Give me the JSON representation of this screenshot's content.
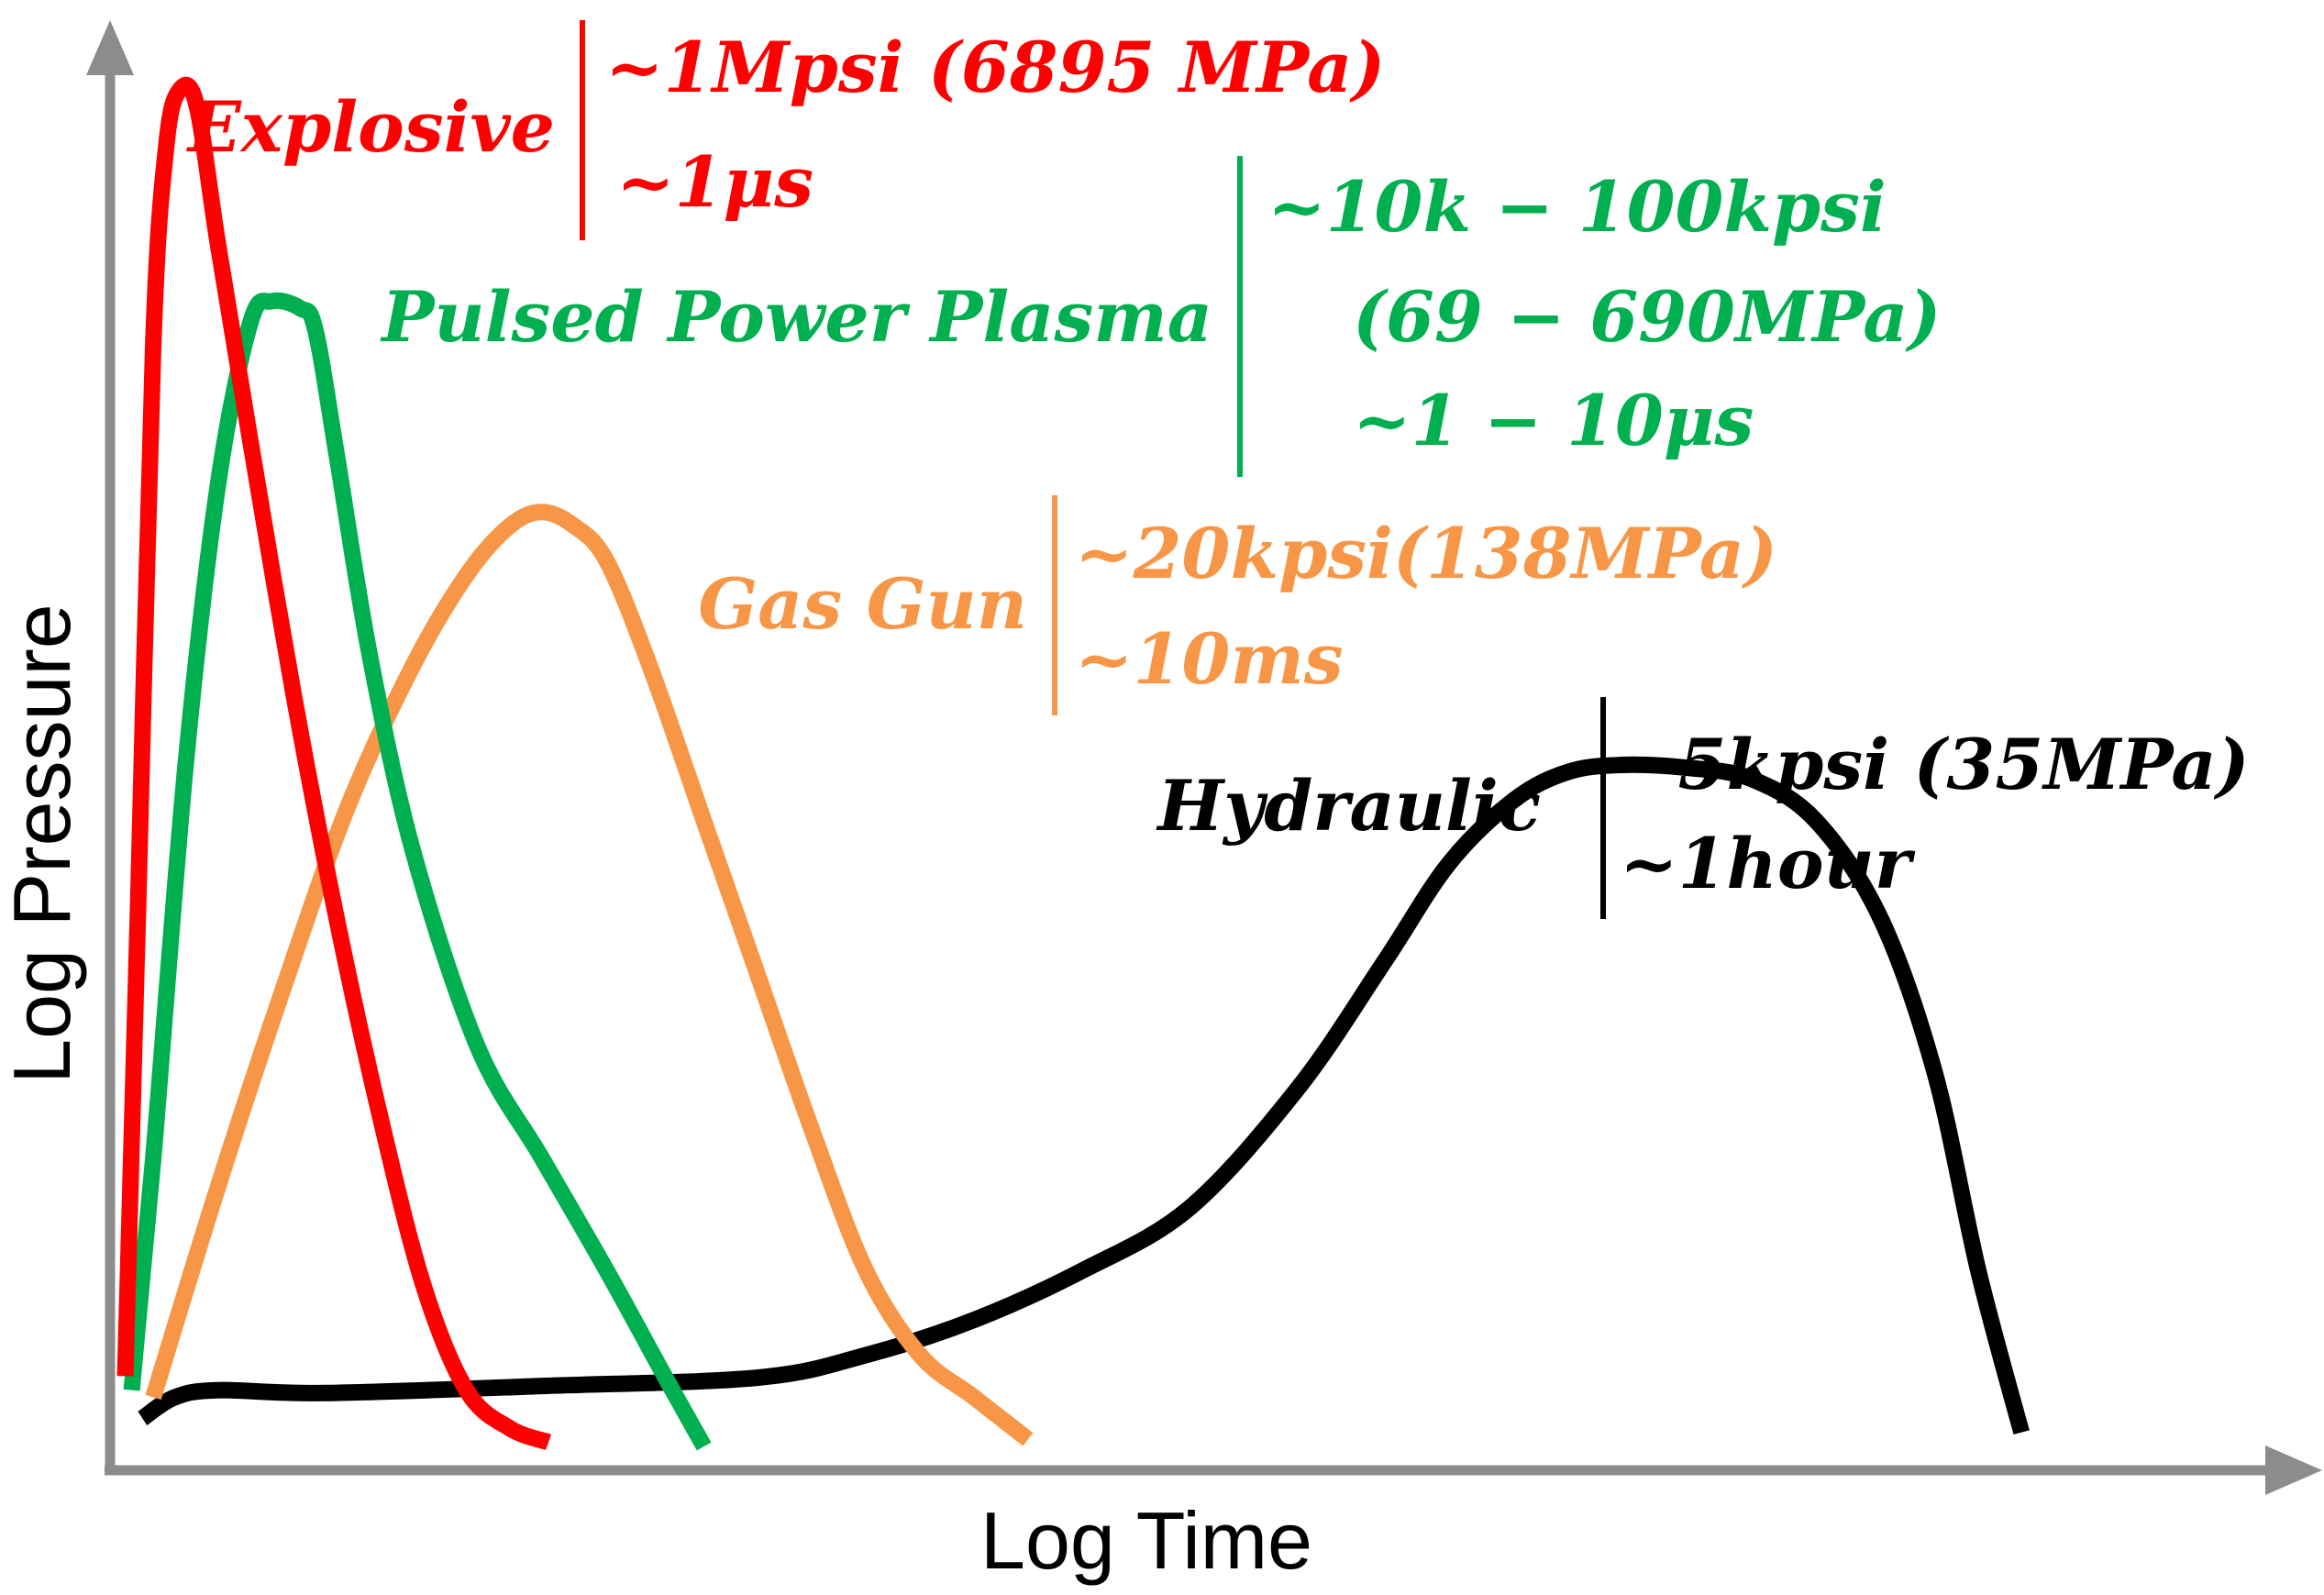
{
  "chart_data": {
    "type": "line",
    "title": "",
    "xlabel": "Log Time",
    "ylabel": "Log Pressure",
    "grid": false,
    "legend": "annotations beside each curve",
    "xlim": [
      0,
      100
    ],
    "ylim": [
      0,
      100
    ],
    "colors": {
      "axis": "#8c8c8c",
      "explosive": "#ff0000",
      "plasma": "#00b050",
      "gasgun": "#f79646",
      "hydraulic": "#000000"
    },
    "series": [
      {
        "name": "Explosive",
        "color": "#ff0000",
        "specs": [
          "~1Mpsi (6895 MPa)",
          "~1μs"
        ],
        "x": [
          0.7,
          1.3,
          2.0,
          2.6,
          3.2,
          4.0,
          5.0,
          6.5,
          8.5,
          10.5,
          12.5,
          14.5,
          16.5,
          18.5,
          20.3
        ],
        "y": [
          6.5,
          40.0,
          80.0,
          94.0,
          98.0,
          97.0,
          87.0,
          73.0,
          55.0,
          39.0,
          25.0,
          13.0,
          5.5,
          2.8,
          1.8
        ]
      },
      {
        "name": "Pulsed Power Plasma",
        "color": "#00b050",
        "specs": [
          "~10k − 100kpsi",
          "(69 − 690MPa)",
          "~1 − 10μs"
        ],
        "x": [
          1.0,
          2.0,
          3.5,
          5.0,
          6.5,
          7.5,
          8.8,
          9.5,
          10.5,
          12.0,
          14.0,
          17.0,
          20.0,
          23.0,
          25.5,
          27.5
        ],
        "y": [
          5.5,
          22.0,
          50.0,
          70.0,
          81.5,
          83.0,
          82.5,
          81.0,
          72.0,
          58.0,
          44.0,
          30.0,
          22.0,
          14.0,
          7.0,
          1.5
        ]
      },
      {
        "name": "Gas Gun",
        "color": "#f79646",
        "specs": [
          "~20kpsi(138MPa)",
          "~10ms"
        ],
        "x": [
          2.0,
          5.0,
          8.0,
          11.0,
          14.0,
          16.5,
          18.5,
          20.0,
          21.5,
          23.0,
          25.0,
          27.5,
          30.0,
          32.5,
          35.0,
          37.5,
          40.0,
          42.5
        ],
        "y": [
          5.0,
          20.0,
          34.0,
          47.0,
          57.0,
          63.5,
          67.0,
          68.0,
          67.0,
          64.5,
          57.0,
          46.0,
          35.0,
          24.0,
          14.0,
          8.0,
          5.0,
          2.0
        ]
      },
      {
        "name": "Hydraulic",
        "color": "#000000",
        "specs": [
          "~5kpsi (35MPa)",
          "~1hour"
        ],
        "x": [
          1.5,
          3.0,
          5.0,
          10.0,
          20.0,
          30.0,
          35.0,
          40.0,
          45.0,
          50.0,
          55.0,
          59.0,
          62.0,
          65.0,
          67.5,
          70.0,
          73.0,
          76.0,
          79.0,
          82.0,
          84.5,
          86.5,
          88.5
        ],
        "y": [
          3.5,
          5.0,
          5.5,
          5.3,
          5.8,
          6.4,
          8.0,
          10.5,
          14.0,
          18.5,
          27.0,
          36.0,
          43.0,
          47.5,
          49.5,
          50.0,
          49.8,
          49.0,
          46.0,
          39.0,
          28.0,
          14.0,
          2.5
        ]
      }
    ]
  }
}
